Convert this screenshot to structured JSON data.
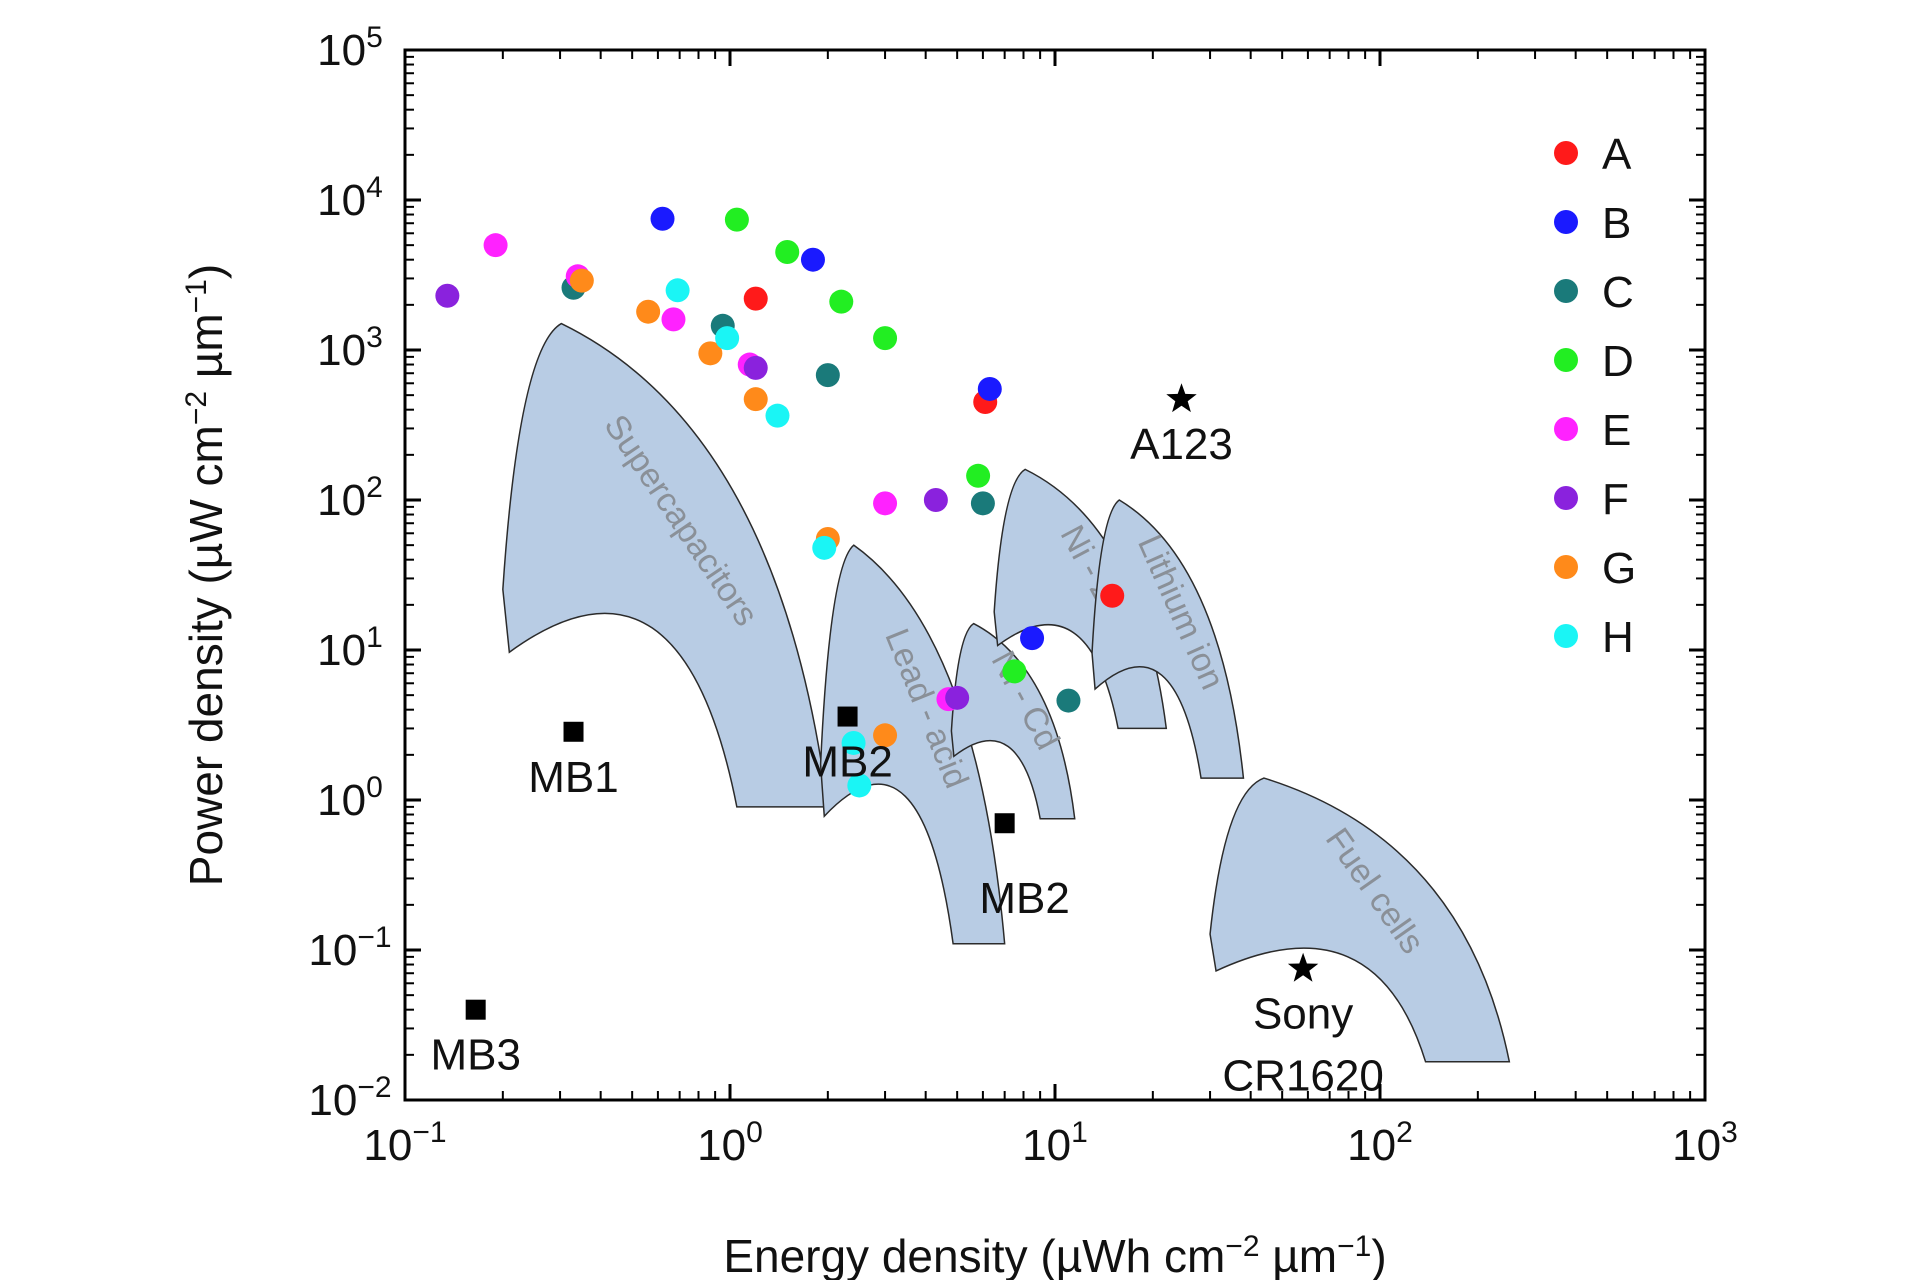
{
  "chart_data": {
    "type": "scatter",
    "xscale": "log",
    "yscale": "log",
    "xlim": [
      0.1,
      1000
    ],
    "ylim": [
      0.01,
      100000
    ],
    "xlabel": {
      "main": "Energy density (µWh cm",
      "exp1": "−2",
      "mid": " µm",
      "exp2": "−1",
      "end": ")"
    },
    "ylabel": {
      "main": "Power density (µW cm",
      "exp1": "−2",
      "mid": " µm",
      "exp2": "−1",
      "end": ")"
    },
    "x_ticks": [
      {
        "value": 0.1,
        "base": "10",
        "exp": "−1"
      },
      {
        "value": 1,
        "base": "10",
        "exp": "0"
      },
      {
        "value": 10,
        "base": "10",
        "exp": "1"
      },
      {
        "value": 100,
        "base": "10",
        "exp": "2"
      },
      {
        "value": 1000,
        "base": "10",
        "exp": "3"
      }
    ],
    "y_ticks": [
      {
        "value": 0.01,
        "base": "10",
        "exp": "−2"
      },
      {
        "value": 0.1,
        "base": "10",
        "exp": "−1"
      },
      {
        "value": 1,
        "base": "10",
        "exp": "0"
      },
      {
        "value": 10,
        "base": "10",
        "exp": "1"
      },
      {
        "value": 100,
        "base": "10",
        "exp": "2"
      },
      {
        "value": 1000,
        "base": "10",
        "exp": "3"
      },
      {
        "value": 10000,
        "base": "10",
        "exp": "4"
      },
      {
        "value": 100000,
        "base": "10",
        "exp": "5"
      }
    ],
    "regions": [
      {
        "name": "Supercapacitors",
        "e_range": [
          0.2,
          2.0
        ],
        "p_range": [
          0.9,
          1500
        ],
        "label_angle": 56
      },
      {
        "name": "Lead - acid",
        "e_range": [
          1.9,
          7.0
        ],
        "p_range": [
          0.11,
          50
        ],
        "label_angle": 68
      },
      {
        "name": "Ni - Cd",
        "e_range": [
          4.8,
          11.5
        ],
        "p_range": [
          0.75,
          15
        ],
        "label_angle": 62
      },
      {
        "name": "Ni - Zn",
        "e_range": [
          6.5,
          22
        ],
        "p_range": [
          3.0,
          160
        ],
        "label_angle": 62
      },
      {
        "name": "Lithium ion",
        "e_range": [
          13,
          38
        ],
        "p_range": [
          1.4,
          100
        ],
        "label_angle": 66
      },
      {
        "name": "Fuel cells",
        "e_range": [
          30,
          250
        ],
        "p_range": [
          0.018,
          1.4
        ],
        "label_angle": 55
      }
    ],
    "series": [
      {
        "name": "A",
        "color": "#ff1a1a",
        "points": [
          [
            1.2,
            2200
          ],
          [
            6.1,
            450
          ],
          [
            15.0,
            23
          ]
        ]
      },
      {
        "name": "B",
        "color": "#1a1aff",
        "points": [
          [
            0.62,
            7500
          ],
          [
            1.8,
            4000
          ],
          [
            6.3,
            550
          ],
          [
            8.5,
            12
          ]
        ]
      },
      {
        "name": "C",
        "color": "#1a7a7a",
        "points": [
          [
            0.33,
            2600
          ],
          [
            0.95,
            1450
          ],
          [
            2.0,
            680
          ],
          [
            6.0,
            95
          ],
          [
            11.0,
            4.6
          ]
        ]
      },
      {
        "name": "D",
        "color": "#22ee22",
        "points": [
          [
            1.05,
            7400
          ],
          [
            1.5,
            4500
          ],
          [
            2.2,
            2100
          ],
          [
            3.0,
            1200
          ],
          [
            5.8,
            145
          ],
          [
            7.5,
            7.2
          ]
        ]
      },
      {
        "name": "E",
        "color": "#ff22ff",
        "points": [
          [
            0.19,
            5000
          ],
          [
            0.34,
            3100
          ],
          [
            0.67,
            1600
          ],
          [
            1.15,
            800
          ],
          [
            3.0,
            95
          ],
          [
            4.7,
            4.7
          ]
        ]
      },
      {
        "name": "F",
        "color": "#8a22dd",
        "points": [
          [
            0.135,
            2300
          ],
          [
            1.2,
            760
          ],
          [
            4.3,
            100
          ],
          [
            5.0,
            4.8
          ]
        ]
      },
      {
        "name": "G",
        "color": "#ff8a1a",
        "points": [
          [
            0.35,
            2900
          ],
          [
            0.56,
            1800
          ],
          [
            0.87,
            950
          ],
          [
            1.2,
            470
          ],
          [
            2.0,
            55
          ],
          [
            3.0,
            2.7
          ]
        ]
      },
      {
        "name": "H",
        "color": "#1af5f5",
        "points": [
          [
            0.69,
            2500
          ],
          [
            0.98,
            1200
          ],
          [
            1.4,
            365
          ],
          [
            1.95,
            48
          ],
          [
            2.4,
            2.4
          ],
          [
            2.5,
            1.25
          ]
        ]
      }
    ],
    "markers": [
      {
        "label": "MB1",
        "symbol": "square",
        "x": 0.33,
        "y": 2.85,
        "label_pos": "below"
      },
      {
        "label": "MB2",
        "symbol": "square",
        "x": 2.3,
        "y": 3.6,
        "label_pos": "below"
      },
      {
        "label": "MB2",
        "symbol": "square",
        "x": 7.0,
        "y": 0.7,
        "label_pos": "below-right"
      },
      {
        "label": "MB3",
        "symbol": "square",
        "x": 0.165,
        "y": 0.04,
        "label_pos": "below"
      },
      {
        "label": "A123",
        "symbol": "star",
        "x": 24.5,
        "y": 470,
        "label_pos": "below"
      },
      {
        "label": "Sony",
        "label2": "CR1620",
        "symbol": "star",
        "x": 58,
        "y": 0.075,
        "label_pos": "below"
      }
    ],
    "legend": {
      "position": "top-right",
      "entries": [
        "A",
        "B",
        "C",
        "D",
        "E",
        "F",
        "G",
        "H"
      ]
    }
  }
}
